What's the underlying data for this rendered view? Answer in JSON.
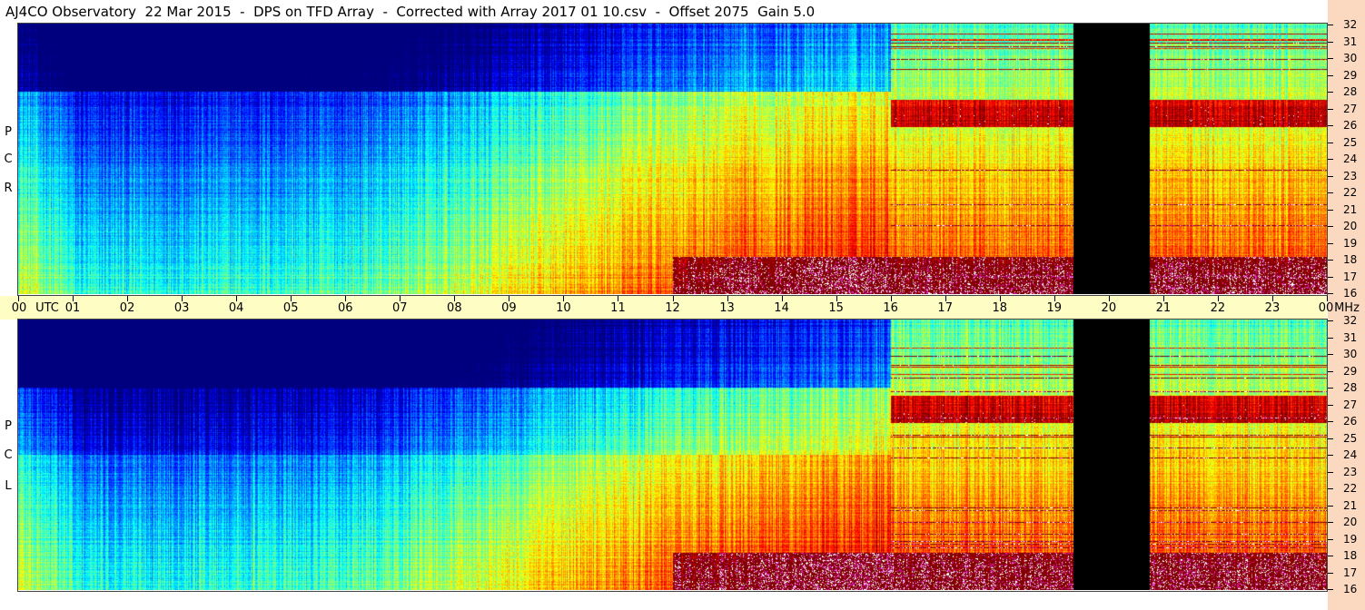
{
  "title": "AJ4CO Observatory  22 Mar 2015  -  DPS on TFD Array  -  Corrected with Array 2017 01 10.csv  -  Offset 2075  Gain 5.0",
  "panels": [
    {
      "id": "rcp",
      "label_letters": [
        "R",
        "C",
        "P"
      ]
    },
    {
      "id": "lcp",
      "label_letters": [
        "L",
        "C",
        "P"
      ]
    }
  ],
  "colors": {
    "background_strip": "#fbd9c0",
    "axis_band": "#fefec4",
    "data_gap": "#000000"
  },
  "chart_data": {
    "type": "heatmap",
    "description_axes": {
      "x_start_label": "00",
      "x_unit_label": "UTC",
      "x_ticks": [
        "00",
        "01",
        "02",
        "03",
        "04",
        "05",
        "06",
        "07",
        "08",
        "09",
        "10",
        "11",
        "12",
        "13",
        "14",
        "15",
        "16",
        "17",
        "18",
        "19",
        "20",
        "21",
        "22",
        "23",
        "00"
      ],
      "x_end_unit": "MHz",
      "y_ticks": [
        "32",
        "31",
        "30",
        "29",
        "28",
        "27",
        "26",
        "25",
        "24",
        "23",
        "22",
        "21",
        "20",
        "19",
        "18",
        "17",
        "16"
      ]
    },
    "x_range_hours": [
      0,
      24
    ],
    "y_range_mhz": [
      16,
      32
    ],
    "data_gap_hours": [
      19.35,
      20.75
    ],
    "colormap": "jet",
    "series": [
      {
        "name": "RCP"
      },
      {
        "name": "LCP"
      }
    ]
  }
}
